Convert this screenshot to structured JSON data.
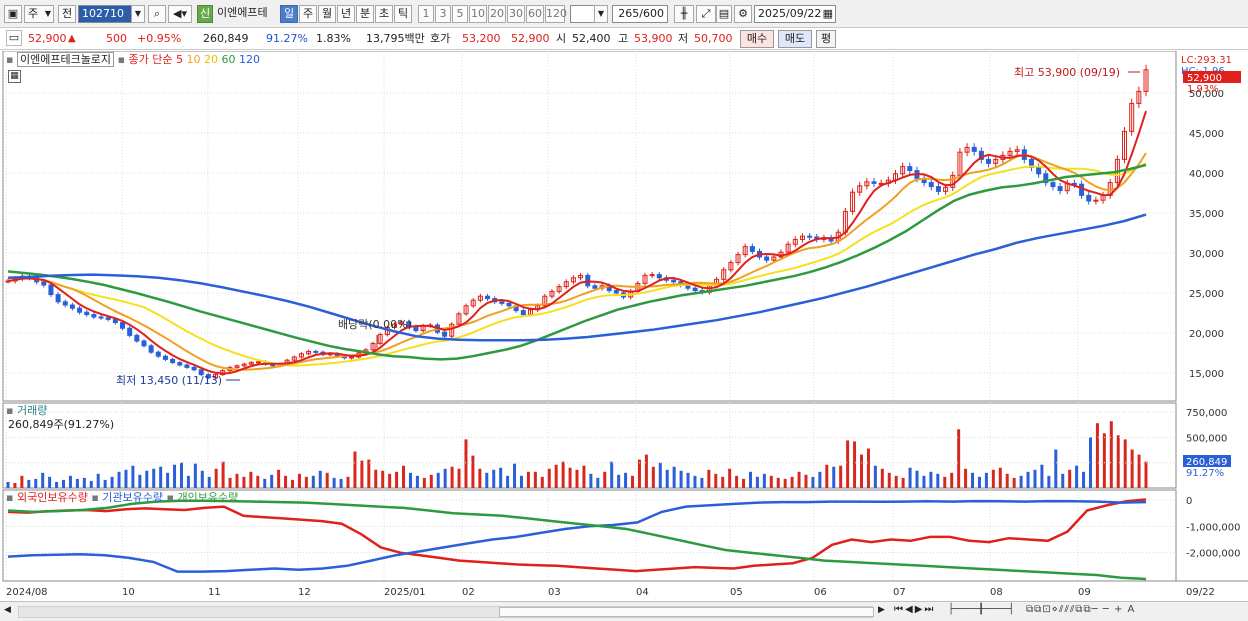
{
  "toolbar": {
    "type_dropdown": "주",
    "scope_dropdown": "전",
    "stock_code": "102710",
    "badge_label": "신",
    "stock_name": "이엔에프테",
    "period_buttons": [
      "일",
      "주",
      "월",
      "년",
      "분",
      "초",
      "틱"
    ],
    "selected_period": "일",
    "count_buttons": [
      "1",
      "3",
      "5",
      "10",
      "20",
      "30",
      "60",
      "120"
    ],
    "count_display": "265",
    "count_max": "/600",
    "date": "2025/09/22"
  },
  "quote": {
    "price": "52,900",
    "change_arrow": "▲",
    "change": "500",
    "change_pct": "+0.95%",
    "volume": "260,849",
    "volume_ratio": "91.27%",
    "turnover_pct": "1.83%",
    "trade_amount": "13,795백만",
    "ask_label": "호가",
    "ask_price": "53,200",
    "bid_price": "52,900",
    "open_label": "시",
    "open": "52,400",
    "high_label": "고",
    "high": "53,900",
    "low_label": "저",
    "low": "50,700",
    "buy_label": "매수",
    "sell_label": "매도",
    "eval_label": "평"
  },
  "price_pane": {
    "stock_label": "이엔에프테크놀로지",
    "ma_label": "종가 단순",
    "ma_periods": [
      "5",
      "10",
      "20",
      "60",
      "120"
    ],
    "ma_colors": [
      "#e0201a",
      "#f0a020",
      "#f5e020",
      "#2e9a40",
      "#2a5fd8"
    ],
    "annotation_high": "최고 53,900 (09/19)",
    "annotation_low": "최저 13,450 (11/13)",
    "annotation_dividend": "배당락(0.00%)",
    "lc_label": "LC:293.31",
    "hc_label": "HC:-1.96",
    "last_price_tag": "52,900",
    "last_change_tag": "1.93%"
  },
  "volume_pane": {
    "title": "거래량",
    "subtitle": "260,849주(91.27%)",
    "last_volume_tag": "260,849",
    "last_ratio_tag": "91.27%",
    "y_ticks": [
      "750,000",
      "500,000",
      "250,000"
    ]
  },
  "holding_pane": {
    "series": [
      "외국인보유수량",
      "기관보유수량",
      "개인보유수량"
    ],
    "colors": [
      "#e0201a",
      "#2a5fd8",
      "#2e9a40"
    ],
    "y_ticks": [
      "0",
      "-1,000,000",
      "-2,000,000"
    ]
  },
  "x_axis": {
    "labels": [
      "2024/08",
      "10",
      "11",
      "12",
      "2025/01",
      "02",
      "03",
      "04",
      "05",
      "06",
      "07",
      "08",
      "09"
    ],
    "end_label": "09/22"
  },
  "chart_data": {
    "type": "line",
    "title": "이엔에프테크놀로지",
    "price_axis": {
      "ticks": [
        "50,000",
        "45,000",
        "40,000",
        "35,000",
        "30,000",
        "25,000",
        "20,000",
        "15,000"
      ],
      "ylim": [
        11500,
        54500
      ]
    },
    "close_series": [
      26500,
      26800,
      27100,
      26900,
      26400,
      26000,
      24800,
      23900,
      23500,
      23100,
      22600,
      22300,
      22000,
      21900,
      21700,
      21300,
      20600,
      19700,
      19000,
      18400,
      17600,
      17100,
      16700,
      16300,
      16000,
      15700,
      15400,
      14800,
      14400,
      14800,
      15300,
      15700,
      15900,
      16100,
      16300,
      16400,
      16100,
      15900,
      16100,
      16600,
      17000,
      17400,
      17700,
      17600,
      17300,
      17400,
      17100,
      16900,
      17000,
      17500,
      17900,
      18700,
      19800,
      20700,
      21100,
      21400,
      20800,
      20300,
      20900,
      21000,
      20100,
      19600,
      21100,
      22400,
      23400,
      24100,
      24600,
      24300,
      23900,
      23700,
      23400,
      22800,
      22300,
      22900,
      23400,
      24600,
      25200,
      25800,
      26400,
      26900,
      27200,
      25900,
      25600,
      25900,
      25300,
      25000,
      24500,
      25200,
      26200,
      27200,
      27300,
      26900,
      26600,
      26400,
      26000,
      25600,
      25300,
      25100,
      25900,
      26700,
      27900,
      28800,
      29800,
      30800,
      30200,
      29500,
      29100,
      29500,
      30100,
      31100,
      31700,
      32100,
      32000,
      31700,
      31900,
      31500,
      32600,
      35200,
      37600,
      38400,
      38900,
      38700,
      38700,
      39100,
      39900,
      40800,
      40300,
      39300,
      38800,
      38300,
      37700,
      38200,
      39700,
      42600,
      43200,
      42700,
      41700,
      41200,
      41700,
      42200,
      42700,
      42900,
      41700,
      40700,
      39900,
      38800,
      38300,
      37800,
      38700,
      38600,
      37200,
      36500,
      36600,
      37200,
      38800,
      41700,
      45200,
      48700,
      50200,
      52900
    ],
    "ma_series": [
      {
        "name": "5",
        "values": []
      },
      {
        "name": "10",
        "values": []
      },
      {
        "name": "20",
        "values": []
      },
      {
        "name": "60",
        "values": [
          27700,
          27500,
          27300,
          27050,
          26750,
          26400,
          26000,
          25500,
          25000,
          24450,
          23900,
          23300,
          22700,
          22150,
          21600,
          21050,
          20500,
          19950,
          19400,
          18900,
          18400,
          18000,
          17700,
          17350,
          17100,
          17000,
          16800,
          16700,
          16800,
          17100,
          17500,
          17900,
          18400,
          19100,
          19900,
          20700,
          21500,
          22200,
          22900,
          23400,
          23900,
          24300,
          24700,
          25000,
          25300,
          25600,
          25900,
          26300,
          26700,
          27100,
          27600,
          28200,
          28900,
          29700,
          30600,
          31600,
          32700,
          34000,
          35300,
          36500,
          37300,
          37800,
          38200,
          38400,
          38700,
          39100,
          39500,
          39700,
          39900,
          40100,
          40500,
          41000
        ]
      },
      {
        "name": "120",
        "values": [
          26900,
          27000,
          27150,
          27250,
          27300,
          27200,
          27100,
          26900,
          26600,
          26200,
          25700,
          25150,
          24600,
          24000,
          23300,
          22500,
          21700,
          20900,
          20200,
          19600,
          19300,
          19150,
          19100,
          19100,
          19100,
          19150,
          19300,
          19500,
          19800,
          20100,
          20400,
          20800,
          21200,
          21600,
          22100,
          22600,
          23200,
          23800,
          24400,
          25100,
          25800,
          26600,
          27400,
          28200,
          29000,
          29800,
          30500,
          31300,
          31900,
          32400,
          32900,
          33400,
          34000,
          34800
        ]
      }
    ],
    "volume_values": [
      60,
      50,
      120,
      80,
      90,
      150,
      110,
      60,
      80,
      120,
      90,
      100,
      70,
      140,
      80,
      110,
      160,
      180,
      220,
      130,
      170,
      190,
      210,
      150,
      230,
      250,
      120,
      240,
      170,
      110,
      190,
      260,
      100,
      140,
      110,
      160,
      120,
      90,
      130,
      180,
      120,
      80,
      140,
      110,
      120,
      170,
      150,
      100,
      90,
      110,
      360,
      270,
      280,
      180,
      170,
      140,
      160,
      220,
      150,
      120,
      100,
      130,
      150,
      190,
      210,
      190,
      480,
      320,
      190,
      150,
      180,
      200,
      120,
      240,
      120,
      160,
      160,
      110,
      190,
      230,
      260,
      200,
      180,
      220,
      140,
      100,
      160,
      260,
      130,
      150,
      120,
      280,
      330,
      210,
      250,
      180,
      210,
      170,
      150,
      120,
      100,
      180,
      140,
      110,
      190,
      120,
      90,
      160,
      110,
      140,
      120,
      100,
      90,
      110,
      160,
      130,
      110,
      160,
      230,
      210,
      220,
      470,
      460,
      330,
      390,
      220,
      190,
      150,
      120,
      100,
      200,
      170,
      120,
      160,
      140,
      110,
      150,
      580,
      190,
      150,
      110,
      150,
      180,
      200,
      140,
      100,
      120,
      160,
      180,
      230,
      120,
      380,
      140,
      180,
      220,
      160,
      500,
      640,
      540,
      660,
      520,
      480,
      380,
      330,
      260
    ],
    "holding_series": [
      {
        "name": "외국인보유수량",
        "values": [
          -450000,
          -480000,
          -430000,
          -400000,
          -380000,
          -420000,
          -350000,
          -320000,
          -350000,
          -380000,
          -300000,
          -250000,
          -600000,
          -650000,
          -700000,
          -750000,
          -800000,
          -900000,
          -1300000,
          -1800000,
          -2000000,
          -2100000,
          -2200000,
          -2300000,
          -2350000,
          -2400000,
          -2450000,
          -2480000,
          -2500000,
          -2550000,
          -2600000,
          -2650000,
          -2700000,
          -2650000,
          -2600000,
          -2550000,
          -2580000,
          -2600000,
          -2500000,
          -2450000,
          -2400000,
          -2200000,
          -1700000,
          -1500000,
          -1600000,
          -1500000,
          -1550000,
          -1400000,
          -1400000,
          -1550000,
          -1600000,
          -1450000,
          -1500000,
          -1550000,
          -1200000,
          -400000,
          -200000,
          -50000,
          20000
        ]
      },
      {
        "name": "기관보유수량",
        "values": [
          -2150000,
          -2100000,
          -2080000,
          -2060000,
          -2100000,
          -2200000,
          -2350000,
          -2720000,
          -2720000,
          -2700000,
          -2650000,
          -2600000,
          -2650000,
          -2600000,
          -2500000,
          -2300000,
          -2100000,
          -1950000,
          -1800000,
          -1650000,
          -1500000,
          -1400000,
          -1250000,
          -1100000,
          -1000000,
          -950000,
          -850000,
          -450000,
          -250000,
          -200000,
          -150000,
          -100000,
          -80000,
          -80000,
          -60000,
          -60000,
          -70000,
          -60000,
          -50000,
          -60000,
          -40000,
          -50000,
          -60000,
          -40000,
          -50000,
          -60000,
          -100000,
          -80000
        ]
      },
      {
        "name": "개인보유수량",
        "values": [
          -400000,
          -450000,
          -420000,
          -380000,
          -300000,
          -150000,
          -60000,
          -30000,
          -30000,
          -40000,
          -60000,
          -80000,
          -100000,
          -150000,
          -200000,
          -250000,
          -300000,
          -400000,
          -500000,
          -550000,
          -600000,
          -700000,
          -800000,
          -900000,
          -1000000,
          -1100000,
          -1300000,
          -1500000,
          -1700000,
          -1900000,
          -2000000,
          -2100000,
          -2200000,
          -2300000,
          -2350000,
          -2400000,
          -2450000,
          -2500000,
          -2550000,
          -2600000,
          -2650000,
          -2700000,
          -2750000,
          -2800000,
          -2850000,
          -2950000,
          -3000000
        ]
      }
    ]
  }
}
